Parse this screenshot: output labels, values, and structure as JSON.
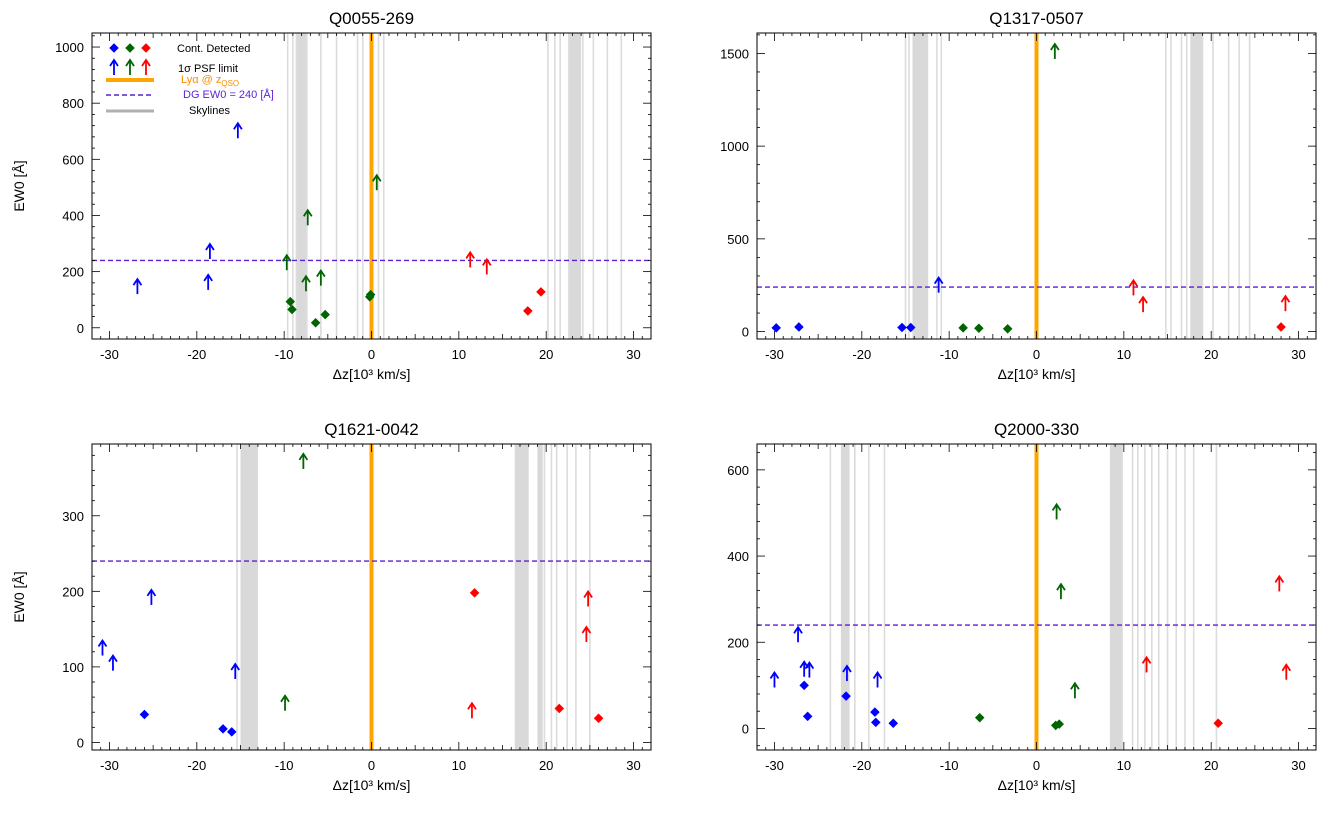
{
  "chart_data": [
    {
      "type": "scatter",
      "title": "Q0055-269",
      "xlabel": "Δz[10³ km/s]",
      "ylabel": "EW0 [Å]",
      "xlim": [
        -32,
        32
      ],
      "ylim": [
        -40,
        1050
      ],
      "xticks": [
        -30,
        -20,
        -10,
        0,
        10,
        20,
        30
      ],
      "yticks": [
        0,
        200,
        400,
        600,
        800,
        1000
      ],
      "hline": 240,
      "lya_x": 0,
      "skylines": [
        -9.6,
        -9.0,
        -8.6,
        -7.4,
        -5.8,
        -4.0,
        -1.6,
        -1.0,
        0.8,
        1.4,
        20.2,
        21.0,
        21.6,
        22.6,
        24.2,
        25.4,
        27.0,
        28.6
      ],
      "skybands": [
        [
          -8.6,
          -7.5
        ],
        [
          22.6,
          24.0
        ]
      ],
      "legend": {
        "placement": "top-left",
        "detected": "Cont. Detected",
        "limit": "1σ PSF limit",
        "lya": "Lyα @ z",
        "lya_sub": "QSO",
        "dg": "DG EW0 = 240 [Å]",
        "skylines": "Skylines"
      },
      "series": [
        {
          "color": "#0000ff",
          "detected": [],
          "limits": [
            [
              -26.8,
              120
            ],
            [
              -18.7,
              135
            ],
            [
              -18.5,
              245
            ],
            [
              -15.3,
              675
            ]
          ]
        },
        {
          "color": "#006400",
          "detected": [
            [
              -9.3,
              93
            ],
            [
              -9.1,
              65
            ],
            [
              -6.4,
              18
            ],
            [
              -5.3,
              47
            ],
            [
              -0.2,
              110
            ],
            [
              -0.1,
              118
            ]
          ],
          "limits": [
            [
              -9.7,
              205
            ],
            [
              -7.3,
              365
            ],
            [
              -7.5,
              130
            ],
            [
              -5.8,
              150
            ],
            [
              0.6,
              490
            ]
          ]
        },
        {
          "color": "#ff0000",
          "detected": [
            [
              17.9,
              60
            ],
            [
              19.4,
              128
            ]
          ],
          "limits": [
            [
              11.3,
              215
            ],
            [
              13.2,
              190
            ]
          ]
        }
      ]
    },
    {
      "type": "scatter",
      "title": "Q1317-0507",
      "xlabel": "Δz[10³ km/s]",
      "ylabel": "",
      "xlim": [
        -32,
        32
      ],
      "ylim": [
        -40,
        1610
      ],
      "xticks": [
        -30,
        -20,
        -10,
        0,
        10,
        20,
        30
      ],
      "yticks": [
        0,
        500,
        1000,
        1500
      ],
      "hline": 240,
      "lya_x": 0,
      "skylines": [
        -15.0,
        -14.6,
        -11.4,
        -10.9,
        14.8,
        15.4,
        16.6,
        17.2,
        19.0,
        20.2,
        22.0,
        23.2,
        24.4
      ],
      "skybands": [
        [
          -14.2,
          -12.4
        ],
        [
          17.6,
          19.0
        ]
      ],
      "series": [
        {
          "color": "#0000ff",
          "detected": [
            [
              -29.8,
              20
            ],
            [
              -27.2,
              25
            ],
            [
              -15.4,
              22
            ],
            [
              -14.4,
              22
            ]
          ],
          "limits": [
            [
              -11.2,
              210
            ]
          ]
        },
        {
          "color": "#006400",
          "detected": [
            [
              -8.4,
              20
            ],
            [
              -6.6,
              18
            ],
            [
              -3.3,
              15
            ]
          ],
          "limits": [
            [
              2.1,
              1470
            ]
          ]
        },
        {
          "color": "#ff0000",
          "detected": [
            [
              28.0,
              25
            ]
          ],
          "limits": [
            [
              11.1,
              195
            ],
            [
              12.2,
              105
            ],
            [
              28.5,
              110
            ]
          ]
        }
      ]
    },
    {
      "type": "scatter",
      "title": "Q1621-0042",
      "xlabel": "Δz[10³ km/s]",
      "ylabel": "EW0 [Å]",
      "xlim": [
        -32,
        32
      ],
      "ylim": [
        -10,
        395
      ],
      "xticks": [
        -30,
        -20,
        -10,
        0,
        10,
        20,
        30
      ],
      "yticks": [
        0,
        100,
        200,
        300
      ],
      "hline": 240,
      "lya_x": 0,
      "skylines": [
        -15.4,
        19.8,
        20.6,
        21.2,
        22.4,
        23.4,
        25.0
      ],
      "skybands": [
        [
          -15.0,
          -13.0
        ],
        [
          16.4,
          18.0
        ],
        [
          19.0,
          19.6
        ]
      ],
      "series": [
        {
          "color": "#0000ff",
          "detected": [
            [
              -26.0,
              37
            ],
            [
              -17.0,
              18
            ],
            [
              -16.0,
              14
            ]
          ],
          "limits": [
            [
              -30.8,
              115
            ],
            [
              -29.6,
              95
            ],
            [
              -25.2,
              182
            ],
            [
              -15.6,
              84
            ]
          ]
        },
        {
          "color": "#006400",
          "detected": [],
          "limits": [
            [
              -7.8,
              362
            ],
            [
              -9.9,
              42
            ]
          ]
        },
        {
          "color": "#ff0000",
          "detected": [
            [
              11.8,
              198
            ],
            [
              21.5,
              45
            ],
            [
              26.0,
              32
            ]
          ],
          "limits": [
            [
              11.5,
              32
            ],
            [
              24.8,
              180
            ],
            [
              24.6,
              133
            ]
          ]
        }
      ]
    },
    {
      "type": "scatter",
      "title": "Q2000-330",
      "xlabel": "Δz[10³ km/s]",
      "ylabel": "",
      "xlim": [
        -32,
        32
      ],
      "ylim": [
        -50,
        660
      ],
      "xticks": [
        -30,
        -20,
        -10,
        0,
        10,
        20,
        30
      ],
      "yticks": [
        0,
        200,
        400,
        600
      ],
      "hline": 240,
      "lya_x": 0,
      "skylines": [
        -23.6,
        -20.8,
        -19.2,
        -17.4,
        9.8,
        11.0,
        11.6,
        12.4,
        13.2,
        14.0,
        15.0,
        16.0,
        17.0,
        18.0,
        20.6
      ],
      "skybands": [
        [
          -22.4,
          -21.4
        ],
        [
          8.4,
          9.8
        ]
      ],
      "series": [
        {
          "color": "#0000ff",
          "detected": [
            [
              -26.6,
              100
            ],
            [
              -26.2,
              28
            ],
            [
              -21.8,
              75
            ],
            [
              -18.5,
              38
            ],
            [
              -18.4,
              14
            ],
            [
              -16.4,
              12
            ]
          ],
          "limits": [
            [
              -30.0,
              95
            ],
            [
              -27.3,
              200
            ],
            [
              -26.6,
              120
            ],
            [
              -26.0,
              118
            ],
            [
              -21.7,
              110
            ],
            [
              -18.2,
              95
            ]
          ]
        },
        {
          "color": "#006400",
          "detected": [
            [
              -6.5,
              25
            ],
            [
              2.2,
              7
            ],
            [
              2.6,
              10
            ]
          ],
          "limits": [
            [
              2.3,
              485
            ],
            [
              2.8,
              300
            ],
            [
              4.4,
              70
            ]
          ]
        },
        {
          "color": "#ff0000",
          "detected": [
            [
              20.8,
              12
            ]
          ],
          "limits": [
            [
              12.6,
              130
            ],
            [
              27.8,
              318
            ],
            [
              28.6,
              113
            ]
          ]
        }
      ]
    }
  ]
}
